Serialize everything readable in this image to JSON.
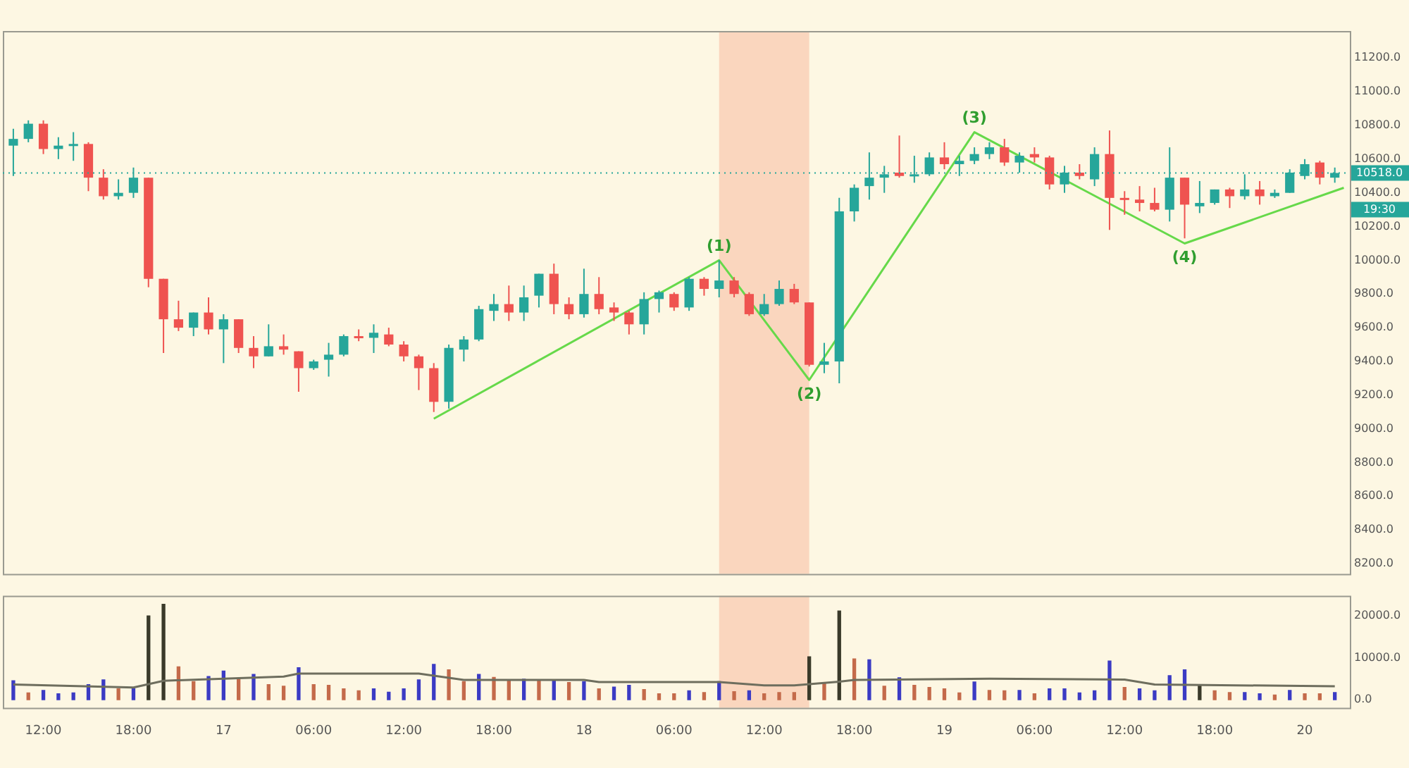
{
  "chart_data": [
    {
      "type": "candlestick",
      "x": [
        "--01-16T10:00",
        "--01-16T11:00",
        "--01-16T12:00",
        "--01-16T13:00",
        "--01-16T14:00",
        "--01-16T15:00",
        "--01-16T16:00",
        "--01-16T17:00",
        "--01-16T18:00",
        "--01-16T19:00",
        "--01-16T20:00",
        "--01-16T21:00",
        "--01-16T22:00",
        "--01-16T23:00",
        "--01-17T00:00",
        "--01-17T01:00",
        "--01-17T02:00",
        "--01-17T03:00",
        "--01-17T04:00",
        "--01-17T05:00",
        "--01-17T06:00",
        "--01-17T07:00",
        "--01-17T08:00",
        "--01-17T09:00",
        "--01-17T10:00",
        "--01-17T11:00",
        "--01-17T12:00",
        "--01-17T13:00",
        "--01-17T14:00",
        "--01-17T15:00",
        "--01-17T16:00",
        "--01-17T17:00",
        "--01-17T18:00",
        "--01-17T19:00",
        "--01-17T20:00",
        "--01-17T21:00",
        "--01-17T22:00",
        "--01-17T23:00",
        "--01-18T00:00",
        "--01-18T01:00",
        "--01-18T02:00",
        "--01-18T03:00",
        "--01-18T04:00",
        "--01-18T05:00",
        "--01-18T06:00",
        "--01-18T07:00",
        "--01-18T08:00",
        "--01-18T09:00",
        "--01-18T10:00",
        "--01-18T11:00",
        "--01-18T12:00",
        "--01-18T13:00",
        "--01-18T14:00",
        "--01-18T15:00",
        "--01-18T16:00",
        "--01-18T17:00",
        "--01-18T18:00",
        "--01-18T19:00",
        "--01-18T20:00",
        "--01-18T21:00",
        "--01-18T22:00",
        "--01-18T23:00",
        "--01-19T00:00",
        "--01-19T01:00",
        "--01-19T02:00",
        "--01-19T03:00",
        "--01-19T04:00",
        "--01-19T05:00",
        "--01-19T06:00",
        "--01-19T07:00",
        "--01-19T08:00",
        "--01-19T09:00",
        "--01-19T10:00",
        "--01-19T11:00",
        "--01-19T12:00",
        "--01-19T13:00",
        "--01-19T14:00",
        "--01-19T15:00",
        "--01-19T16:00",
        "--01-19T17:00",
        "--01-19T18:00",
        "--01-19T19:00",
        "--01-19T20:00",
        "--01-19T21:00",
        "--01-19T22:00",
        "--01-19T23:00",
        "--01-20T00:00",
        "--01-20T01:00",
        "--01-20T02:00"
      ],
      "ohlc": [
        [
          10680,
          10780,
          10500,
          10720
        ],
        [
          10720,
          10830,
          10700,
          10810
        ],
        [
          10810,
          10830,
          10630,
          10660
        ],
        [
          10660,
          10730,
          10600,
          10680
        ],
        [
          10680,
          10760,
          10590,
          10690
        ],
        [
          10690,
          10700,
          10410,
          10490
        ],
        [
          10490,
          10540,
          10360,
          10380
        ],
        [
          10380,
          10480,
          10360,
          10400
        ],
        [
          10400,
          10550,
          10370,
          10490
        ],
        [
          10490,
          10490,
          9840,
          9890
        ],
        [
          9890,
          9890,
          9450,
          9650
        ],
        [
          9650,
          9760,
          9580,
          9600
        ],
        [
          9600,
          9690,
          9550,
          9690
        ],
        [
          9690,
          9780,
          9560,
          9590
        ],
        [
          9590,
          9680,
          9390,
          9650
        ],
        [
          9650,
          9650,
          9450,
          9480
        ],
        [
          9480,
          9550,
          9360,
          9430
        ],
        [
          9430,
          9620,
          9430,
          9490
        ],
        [
          9490,
          9560,
          9440,
          9470
        ],
        [
          9460,
          9460,
          9220,
          9360
        ],
        [
          9360,
          9410,
          9350,
          9400
        ],
        [
          9410,
          9510,
          9310,
          9440
        ],
        [
          9440,
          9560,
          9430,
          9550
        ],
        [
          9550,
          9590,
          9520,
          9540
        ],
        [
          9540,
          9620,
          9450,
          9570
        ],
        [
          9560,
          9600,
          9490,
          9500
        ],
        [
          9500,
          9520,
          9400,
          9430
        ],
        [
          9430,
          9440,
          9230,
          9360
        ],
        [
          9360,
          9390,
          9100,
          9160
        ],
        [
          9160,
          9500,
          9120,
          9480
        ],
        [
          9470,
          9550,
          9400,
          9530
        ],
        [
          9530,
          9730,
          9520,
          9710
        ],
        [
          9700,
          9800,
          9640,
          9740
        ],
        [
          9740,
          9850,
          9640,
          9690
        ],
        [
          9690,
          9850,
          9640,
          9780
        ],
        [
          9790,
          9920,
          9720,
          9920
        ],
        [
          9920,
          9980,
          9680,
          9740
        ],
        [
          9740,
          9780,
          9650,
          9680
        ],
        [
          9680,
          9950,
          9660,
          9800
        ],
        [
          9800,
          9900,
          9680,
          9710
        ],
        [
          9720,
          9750,
          9640,
          9690
        ],
        [
          9690,
          9700,
          9560,
          9620
        ],
        [
          9620,
          9810,
          9560,
          9770
        ],
        [
          9770,
          9820,
          9690,
          9810
        ],
        [
          9800,
          9810,
          9700,
          9720
        ],
        [
          9720,
          9900,
          9700,
          9890
        ],
        [
          9890,
          9900,
          9790,
          9830
        ],
        [
          9830,
          10000,
          9780,
          9880
        ],
        [
          9880,
          9900,
          9780,
          9800
        ],
        [
          9800,
          9810,
          9670,
          9680
        ],
        [
          9680,
          9800,
          9670,
          9740
        ],
        [
          9740,
          9880,
          9730,
          9830
        ],
        [
          9830,
          9860,
          9740,
          9750
        ],
        [
          9750,
          9750,
          9370,
          9380
        ],
        [
          9380,
          9510,
          9330,
          9400
        ],
        [
          9400,
          10370,
          9270,
          10290
        ],
        [
          10290,
          10450,
          10230,
          10430
        ],
        [
          10440,
          10640,
          10360,
          10490
        ],
        [
          10490,
          10560,
          10400,
          10510
        ],
        [
          10520,
          10740,
          10490,
          10500
        ],
        [
          10500,
          10620,
          10460,
          10510
        ],
        [
          10510,
          10640,
          10500,
          10610
        ],
        [
          10610,
          10700,
          10540,
          10570
        ],
        [
          10570,
          10620,
          10500,
          10590
        ],
        [
          10590,
          10670,
          10570,
          10630
        ],
        [
          10630,
          10700,
          10600,
          10670
        ],
        [
          10670,
          10720,
          10560,
          10580
        ],
        [
          10580,
          10640,
          10520,
          10620
        ],
        [
          10630,
          10670,
          10580,
          10610
        ],
        [
          10610,
          10620,
          10420,
          10450
        ],
        [
          10450,
          10560,
          10400,
          10520
        ],
        [
          10520,
          10570,
          10480,
          10500
        ],
        [
          10480,
          10670,
          10440,
          10630
        ],
        [
          10630,
          10770,
          10180,
          10370
        ],
        [
          10370,
          10410,
          10270,
          10360
        ],
        [
          10360,
          10440,
          10290,
          10340
        ],
        [
          10340,
          10430,
          10290,
          10300
        ],
        [
          10300,
          10670,
          10230,
          10490
        ],
        [
          10490,
          10490,
          10130,
          10330
        ],
        [
          10320,
          10470,
          10280,
          10340
        ],
        [
          10340,
          10420,
          10330,
          10420
        ],
        [
          10420,
          10430,
          10310,
          10380
        ],
        [
          10380,
          10510,
          10360,
          10420
        ],
        [
          10420,
          10470,
          10330,
          10380
        ],
        [
          10380,
          10420,
          10370,
          10400
        ],
        [
          10400,
          10540,
          10400,
          10520
        ],
        [
          10500,
          10600,
          10480,
          10570
        ],
        [
          10580,
          10590,
          10450,
          10490
        ],
        [
          10490,
          10550,
          10460,
          10518
        ]
      ],
      "colors": [
        "#26a69a",
        "#26a69a",
        "#ef5350",
        "#26a69a",
        "#26a69a",
        "#ef5350",
        "#ef5350",
        "#26a69a",
        "#26a69a",
        "#ef5350",
        "#ef5350",
        "#ef5350",
        "#26a69a",
        "#ef5350",
        "#26a69a",
        "#ef5350",
        "#ef5350",
        "#26a69a",
        "#ef5350",
        "#ef5350",
        "#26a69a",
        "#26a69a",
        "#26a69a",
        "#ef5350",
        "#26a69a",
        "#ef5350",
        "#ef5350",
        "#ef5350",
        "#ef5350",
        "#26a69a",
        "#26a69a",
        "#26a69a",
        "#26a69a",
        "#ef5350",
        "#26a69a",
        "#26a69a",
        "#ef5350",
        "#ef5350",
        "#26a69a",
        "#ef5350",
        "#ef5350",
        "#ef5350",
        "#26a69a",
        "#26a69a",
        "#ef5350",
        "#26a69a",
        "#ef5350",
        "#26a69a",
        "#ef5350",
        "#ef5350",
        "#26a69a",
        "#26a69a",
        "#ef5350",
        "#ef5350",
        "#26a69a",
        "#26a69a",
        "#26a69a",
        "#26a69a",
        "#26a69a",
        "#ef5350",
        "#26a69a",
        "#26a69a",
        "#ef5350",
        "#26a69a",
        "#26a69a",
        "#26a69a",
        "#ef5350",
        "#26a69a",
        "#ef5350",
        "#ef5350",
        "#26a69a",
        "#ef5350",
        "#26a69a",
        "#ef5350",
        "#ef5350",
        "#ef5350",
        "#ef5350",
        "#26a69a",
        "#ef5350",
        "#26a69a",
        "#26a69a",
        "#ef5350",
        "#26a69a",
        "#ef5350",
        "#26a69a",
        "#26a69a",
        "#26a69a",
        "#ef5350",
        "#26a69a"
      ],
      "series": [
        {
          "type": "line",
          "x": [
            "--01-17T14:00",
            "--01-18T09:00",
            "--01-18T15:00",
            "--01-19T02:00",
            "--01-19T16:00",
            "--01-20T02:36"
          ],
          "values": [
            9060,
            10000,
            9290,
            10760,
            10100,
            10430
          ],
          "color": "#66d94a"
        }
      ],
      "annotations": [
        {
          "text": "(1)",
          "x": "--01-18T09:00",
          "y": 10000
        },
        {
          "text": "(2)",
          "x": "--01-18T15:00",
          "y": 9290
        },
        {
          "text": "(3)",
          "x": "--01-19T02:00",
          "y": 10760
        },
        {
          "text": "(4)",
          "x": "--01-19T16:00",
          "y": 10100
        },
        "19:30"
      ],
      "ref_lines": [
        {
          "axis": "y",
          "value": 10518,
          "label": "10518.0",
          "color": "#26a69a",
          "line_style": "dotted"
        }
      ],
      "bands": [
        {
          "axis": "x",
          "from": "--01-18T09:00",
          "to": "--01-18T15:00",
          "color": "#f9cdb4"
        }
      ],
      "xlim": [
        "--01-16T09:18",
        "--01-20T03:00"
      ],
      "ylim": [
        8140,
        11360
      ],
      "yticks": [
        {
          "value": 8200,
          "label": "8200.0"
        },
        {
          "value": 8400,
          "label": "8400.0"
        },
        {
          "value": 8600,
          "label": "8600.0"
        },
        {
          "value": 8800,
          "label": "8800.0"
        },
        {
          "value": 9000,
          "label": "9000.0"
        },
        {
          "value": 9200,
          "label": "9200.0"
        },
        {
          "value": 9400,
          "label": "9400.0"
        },
        {
          "value": 9600,
          "label": "9600.0"
        },
        {
          "value": 9800,
          "label": "9800.0"
        },
        {
          "value": 10000,
          "label": "10000.0"
        },
        {
          "value": 10200,
          "label": "10200.0"
        },
        {
          "value": 10400,
          "label": "10400.0"
        },
        {
          "value": 10600,
          "label": "10600.0"
        },
        {
          "value": 10800,
          "label": "10800.0"
        },
        {
          "value": 11000,
          "label": "11000.0"
        },
        {
          "value": 11200,
          "label": "11200.0"
        }
      ],
      "tick_labels": "y"
    },
    {
      "type": "bar",
      "series": [
        {
          "type": "bar",
          "x": [
            "--01-16T10:00",
            "--01-16T11:00",
            "--01-16T12:00",
            "--01-16T13:00",
            "--01-16T14:00",
            "--01-16T15:00",
            "--01-16T16:00",
            "--01-16T17:00",
            "--01-16T18:00",
            "--01-16T19:00",
            "--01-16T20:00",
            "--01-16T21:00",
            "--01-16T22:00",
            "--01-16T23:00",
            "--01-17T00:00",
            "--01-17T01:00",
            "--01-17T02:00",
            "--01-17T03:00",
            "--01-17T04:00",
            "--01-17T05:00",
            "--01-17T06:00",
            "--01-17T07:00",
            "--01-17T08:00",
            "--01-17T09:00",
            "--01-17T10:00",
            "--01-17T11:00",
            "--01-17T12:00",
            "--01-17T13:00",
            "--01-17T14:00",
            "--01-17T15:00",
            "--01-17T16:00",
            "--01-17T17:00",
            "--01-17T18:00",
            "--01-17T19:00",
            "--01-17T20:00",
            "--01-17T21:00",
            "--01-17T22:00",
            "--01-17T23:00",
            "--01-18T00:00",
            "--01-18T01:00",
            "--01-18T02:00",
            "--01-18T03:00",
            "--01-18T04:00",
            "--01-18T05:00",
            "--01-18T06:00",
            "--01-18T07:00",
            "--01-18T08:00",
            "--01-18T09:00",
            "--01-18T10:00",
            "--01-18T11:00",
            "--01-18T12:00",
            "--01-18T13:00",
            "--01-18T14:00",
            "--01-18T15:00",
            "--01-18T16:00",
            "--01-18T17:00",
            "--01-18T18:00",
            "--01-18T19:00",
            "--01-18T20:00",
            "--01-18T21:00",
            "--01-18T22:00",
            "--01-18T23:00",
            "--01-19T00:00",
            "--01-19T01:00",
            "--01-19T02:00",
            "--01-19T03:00",
            "--01-19T04:00",
            "--01-19T05:00",
            "--01-19T06:00",
            "--01-19T07:00",
            "--01-19T08:00",
            "--01-19T09:00",
            "--01-19T10:00",
            "--01-19T11:00",
            "--01-19T12:00",
            "--01-19T13:00",
            "--01-19T14:00",
            "--01-19T15:00",
            "--01-19T16:00",
            "--01-19T17:00",
            "--01-19T18:00",
            "--01-19T19:00",
            "--01-19T20:00",
            "--01-19T21:00",
            "--01-19T22:00",
            "--01-19T23:00",
            "--01-20T00:00",
            "--01-20T01:00",
            "--01-20T02:00"
          ],
          "values": [
            4500,
            1600,
            2200,
            1400,
            1600,
            3600,
            4700,
            2600,
            2600,
            19900,
            22700,
            7800,
            4300,
            5500,
            6800,
            4800,
            6000,
            3600,
            3200,
            7600,
            3600,
            3400,
            2600,
            2100,
            2600,
            1800,
            2600,
            4700,
            8400,
            7100,
            4300,
            6000,
            5300,
            4700,
            4900,
            4500,
            4500,
            4100,
            4300,
            2600,
            3000,
            3400,
            2400,
            1400,
            1400,
            2100,
            1700,
            4300,
            1900,
            2100,
            1400,
            1700,
            1700,
            10200,
            4000,
            21100,
            9700,
            9500,
            3200,
            5200,
            3400,
            2900,
            2600,
            1600,
            4200,
            2200,
            2100,
            2200,
            1400,
            2600,
            2600,
            1600,
            2100,
            9200,
            2900,
            2600,
            2100,
            5700,
            7100,
            3400,
            2100,
            1700,
            1700,
            1400,
            1100,
            2200,
            1400,
            1400,
            1700
          ],
          "colors": [
            "#3b3bc4",
            "#c46a4a",
            "#3b3bc4",
            "#3b3bc4",
            "#3b3bc4",
            "#3b3bc4",
            "#3b3bc4",
            "#c46a4a",
            "#3b3bc4",
            "#3a3a2a",
            "#3a3a2a",
            "#c46a4a",
            "#c46a4a",
            "#3b3bc4",
            "#3b3bc4",
            "#c46a4a",
            "#3b3bc4",
            "#c46a4a",
            "#c46a4a",
            "#3b3bc4",
            "#c46a4a",
            "#c46a4a",
            "#c46a4a",
            "#c46a4a",
            "#3b3bc4",
            "#3b3bc4",
            "#3b3bc4",
            "#3b3bc4",
            "#3b3bc4",
            "#c46a4a",
            "#c46a4a",
            "#3b3bc4",
            "#c46a4a",
            "#c46a4a",
            "#3b3bc4",
            "#c46a4a",
            "#3b3bc4",
            "#c46a4a",
            "#3b3bc4",
            "#c46a4a",
            "#3b3bc4",
            "#3b3bc4",
            "#c46a4a",
            "#c46a4a",
            "#c46a4a",
            "#3b3bc4",
            "#c46a4a",
            "#3b3bc4",
            "#c46a4a",
            "#3b3bc4",
            "#c46a4a",
            "#c46a4a",
            "#c46a4a",
            "#3a3a2a",
            "#c46a4a",
            "#3a3a2a",
            "#c46a4a",
            "#3b3bc4",
            "#c46a4a",
            "#3b3bc4",
            "#c46a4a",
            "#c46a4a",
            "#c46a4a",
            "#c46a4a",
            "#3b3bc4",
            "#c46a4a",
            "#c46a4a",
            "#3b3bc4",
            "#c46a4a",
            "#3b3bc4",
            "#3b3bc4",
            "#3b3bc4",
            "#3b3bc4",
            "#3b3bc4",
            "#c46a4a",
            "#3b3bc4",
            "#3b3bc4",
            "#3b3bc4",
            "#3b3bc4",
            "#3a3a2a",
            "#c46a4a",
            "#c46a4a",
            "#3b3bc4",
            "#3b3bc4",
            "#c46a4a",
            "#3b3bc4",
            "#c46a4a",
            "#c46a4a",
            "#3b3bc4"
          ]
        },
        {
          "type": "line",
          "x": [
            "--01-16T10:00",
            "--01-16T18:00",
            "--01-16T20:00",
            "--01-17T04:00",
            "--01-17T05:00",
            "--01-17T13:00",
            "--01-17T16:00",
            "--01-18T00:00",
            "--01-18T01:00",
            "--01-18T09:00",
            "--01-18T12:00",
            "--01-18T14:00",
            "--01-18T17:00",
            "--01-18T18:00",
            "--01-19T03:00",
            "--01-19T12:00",
            "--01-19T14:00",
            "--01-20T02:00"
          ],
          "values": [
            3600,
            2900,
            4500,
            5500,
            6200,
            6200,
            4700,
            4700,
            4200,
            4200,
            3400,
            3400,
            4300,
            4700,
            5000,
            4800,
            3600,
            3200
          ],
          "color": "#6e6e5e"
        }
      ],
      "bands": [
        {
          "axis": "x",
          "from": "--01-18T09:00",
          "to": "--01-18T15:00",
          "color": "#f9cdb4"
        }
      ],
      "xlim": [
        "--01-16T09:18",
        "--01-20T03:00"
      ],
      "ylim": [
        -1900,
        24700
      ],
      "xticks": [
        {
          "value": "--01-16T12:00",
          "label": "12:00"
        },
        {
          "value": "--01-16T18:00",
          "label": "18:00"
        },
        {
          "value": "--01-17",
          "label": "17"
        },
        {
          "value": "--01-17T06:00",
          "label": "06:00"
        },
        {
          "value": "--01-17T12:00",
          "label": "12:00"
        },
        {
          "value": "--01-17T18:00",
          "label": "18:00"
        },
        {
          "value": "--01-18",
          "label": "18"
        },
        {
          "value": "--01-18T06:00",
          "label": "06:00"
        },
        {
          "value": "--01-18T12:00",
          "label": "12:00"
        },
        {
          "value": "--01-18T18:00",
          "label": "18:00"
        },
        {
          "value": "--01-19",
          "label": "19"
        },
        {
          "value": "--01-19T06:00",
          "label": "06:00"
        },
        {
          "value": "--01-19T12:00",
          "label": "12:00"
        },
        {
          "value": "--01-19T18:00",
          "label": "18:00"
        },
        {
          "value": "--01-20",
          "label": "20"
        }
      ],
      "yticks": [
        {
          "value": 0,
          "label": "0.0"
        },
        {
          "value": 10000,
          "label": "10000.0"
        },
        {
          "value": 20000,
          "label": "20000.0"
        }
      ]
    }
  ]
}
